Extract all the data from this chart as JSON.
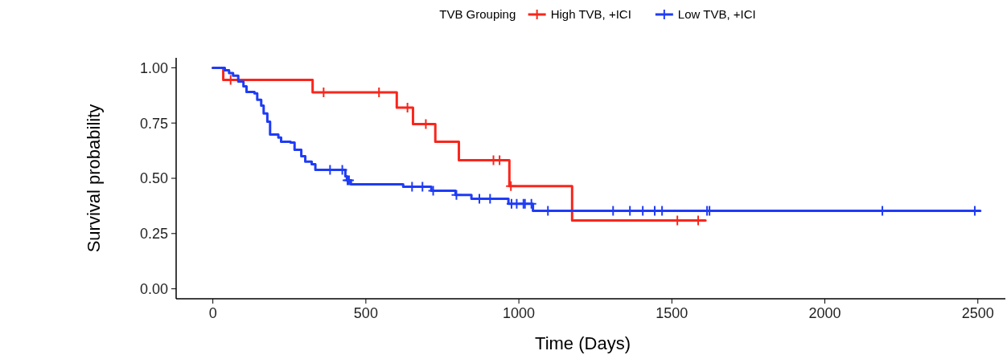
{
  "chart_data": {
    "type": "step",
    "xlabel": "Time (Days)",
    "ylabel": "Survival probability",
    "legend_title": "TVB Grouping",
    "legend": "top",
    "grid": false,
    "line_style": "solid",
    "xlim": [
      -120,
      2590
    ],
    "xticks": [
      0,
      500,
      1000,
      1500,
      2000,
      2500
    ],
    "ylim": [
      -0.045,
      1.045
    ],
    "yticks": [
      {
        "value": 0,
        "label": "0.00"
      },
      {
        "value": 0.25,
        "label": "0.25"
      },
      {
        "value": 0.5,
        "label": "0.50"
      },
      {
        "value": 0.75,
        "label": "0.75"
      },
      {
        "value": 1,
        "label": "1.00"
      }
    ],
    "series": [
      {
        "name": "High TVB, +ICI",
        "color": "#f8261c",
        "x": [
          0,
          34,
          326,
          601,
          654,
          727,
          804,
          969,
          1174,
          1610
        ],
        "values": [
          1,
          0.945,
          0.889,
          0.82,
          0.745,
          0.665,
          0.582,
          0.465,
          0.309,
          0.309
        ]
      },
      {
        "name": "Low TVB, +ICI",
        "color": "#1f3cf5",
        "x": [
          0,
          39,
          53,
          66,
          83,
          100,
          110,
          136,
          145,
          158,
          166,
          178,
          187,
          214,
          223,
          254,
          267,
          289,
          302,
          323,
          335,
          433,
          438,
          451,
          622,
          714,
          793,
          845,
          966,
          1046,
          2508
        ],
        "values": [
          1,
          0.989,
          0.976,
          0.964,
          0.938,
          0.916,
          0.891,
          0.884,
          0.855,
          0.829,
          0.793,
          0.756,
          0.698,
          0.684,
          0.665,
          0.662,
          0.629,
          0.6,
          0.575,
          0.564,
          0.538,
          0.509,
          0.491,
          0.473,
          0.462,
          0.444,
          0.425,
          0.407,
          0.385,
          0.353,
          0.353
        ]
      },
      {
        "type": "scatter",
        "marker": "cross",
        "color": "#f8261c",
        "x": [
          58,
          362,
          543,
          636,
          696,
          917,
          937,
          974,
          1518,
          1586
        ],
        "values": [
          0.945,
          0.889,
          0.889,
          0.82,
          0.745,
          0.582,
          0.582,
          0.465,
          0.309,
          0.309
        ]
      },
      {
        "type": "scatter",
        "marker": "cross",
        "color": "#1f3cf5",
        "x": [
          383,
          423,
          440,
          445,
          651,
          685,
          720,
          796,
          871,
          906,
          976,
          993,
          1015,
          1020,
          1041,
          1095,
          1308,
          1363,
          1405,
          1444,
          1468,
          1615,
          1623,
          2188,
          2490
        ],
        "values": [
          0.538,
          0.538,
          0.491,
          0.491,
          0.462,
          0.462,
          0.444,
          0.425,
          0.407,
          0.407,
          0.385,
          0.385,
          0.385,
          0.385,
          0.385,
          0.353,
          0.353,
          0.353,
          0.353,
          0.353,
          0.353,
          0.353,
          0.353,
          0.353,
          0.353
        ]
      }
    ]
  }
}
